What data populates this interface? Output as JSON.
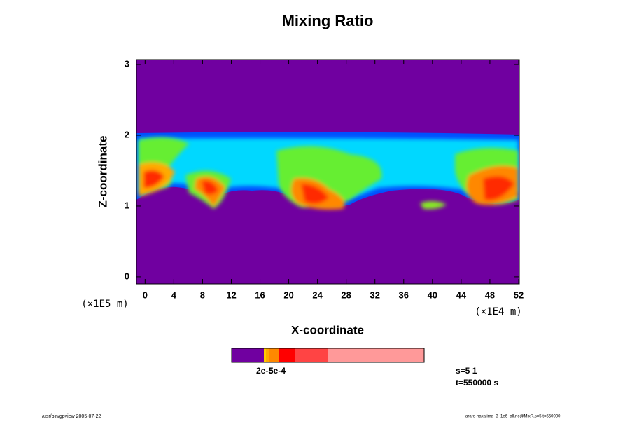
{
  "chart_data": {
    "type": "contour",
    "title": "Mixing Ratio",
    "xlabel": "X-coordinate",
    "ylabel": "Z-coordinate",
    "x_unit": "(×1E4 m)",
    "y_unit": "(×1E5 m)",
    "xlim": [
      -1.2,
      52.1
    ],
    "xticks": [
      0,
      4,
      8,
      12,
      16,
      20,
      24,
      28,
      32,
      36,
      40,
      44,
      48,
      52
    ],
    "ylim": [
      -0.1,
      3.07
    ],
    "yticks": [
      0,
      1,
      2,
      3
    ],
    "colorbar_labels": [
      "2e-5",
      "5e-4"
    ],
    "annotations": [
      "s=5 1",
      "t=550000 s"
    ],
    "footer_left": "/usr/bin/gpview 2005-07-22",
    "footer_right": "arare-nakajima_3_1e6_all.nc@MixR,s=5,t=550000"
  }
}
